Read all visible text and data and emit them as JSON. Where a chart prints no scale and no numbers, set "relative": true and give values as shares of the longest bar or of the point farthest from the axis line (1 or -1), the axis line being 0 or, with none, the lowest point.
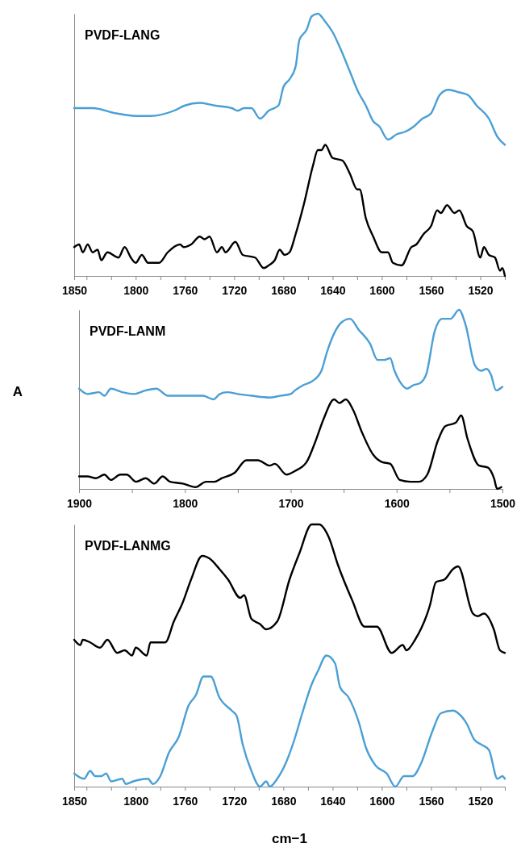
{
  "chart_data": [
    {
      "type": "line",
      "title": "PVDF-LANG",
      "relative": true,
      "xlim": [
        1850,
        1500
      ],
      "xticks": [
        1850,
        {
          "value": 1840,
          "label": null
        },
        {
          "value": 1820,
          "label": null
        },
        1800,
        {
          "value": 1780,
          "label": null
        },
        1760,
        {
          "value": 1740,
          "label": null
        },
        1720,
        {
          "value": 1700,
          "label": null
        },
        1680,
        {
          "value": 1660,
          "label": null
        },
        1640,
        {
          "value": 1620,
          "label": null
        },
        1600,
        {
          "value": 1580,
          "label": null
        },
        1560,
        {
          "value": 1540,
          "label": null
        },
        1520,
        {
          "value": 1500,
          "label": null
        }
      ],
      "series": [
        {
          "color": "#4a9fd5",
          "x": [
            1850,
            1835,
            1816,
            1800,
            1788,
            1769,
            1760,
            1748,
            1736,
            1722,
            1717,
            1712,
            1706,
            1699,
            1692,
            1684,
            1680,
            1675,
            1670,
            1667,
            1661,
            1657,
            1652,
            1646,
            1640,
            1633,
            1626,
            1619,
            1613,
            1607,
            1602,
            1595,
            1588,
            1581,
            1574,
            1567,
            1560,
            1553,
            1546,
            1537,
            1530,
            1523,
            1513,
            1506,
            1500
          ],
          "values": [
            0.64,
            0.64,
            0.62,
            0.61,
            0.61,
            0.63,
            0.65,
            0.66,
            0.65,
            0.64,
            0.63,
            0.64,
            0.64,
            0.6,
            0.63,
            0.65,
            0.72,
            0.75,
            0.8,
            0.9,
            0.94,
            0.99,
            1.0,
            0.97,
            0.93,
            0.86,
            0.78,
            0.7,
            0.65,
            0.59,
            0.57,
            0.52,
            0.54,
            0.55,
            0.57,
            0.6,
            0.62,
            0.69,
            0.71,
            0.7,
            0.69,
            0.65,
            0.6,
            0.53,
            0.5
          ]
        },
        {
          "color": "#000000",
          "x": [
            1850,
            1846,
            1843,
            1839,
            1835,
            1831,
            1828,
            1823,
            1814,
            1809,
            1804,
            1800,
            1795,
            1790,
            1781,
            1774,
            1764,
            1761,
            1755,
            1748,
            1744,
            1740,
            1734,
            1730,
            1727,
            1719,
            1713,
            1703,
            1696,
            1692,
            1687,
            1683,
            1679,
            1675,
            1670,
            1663,
            1656,
            1652,
            1649,
            1646,
            1640,
            1632,
            1626,
            1620,
            1618,
            1613,
            1607,
            1600,
            1595,
            1591,
            1584,
            1576,
            1572,
            1566,
            1560,
            1555,
            1552,
            1547,
            1541,
            1537,
            1531,
            1526,
            1520,
            1517,
            1513,
            1508,
            1504,
            1502,
            1500
          ],
          "values": [
            0.11,
            0.12,
            0.09,
            0.12,
            0.09,
            0.1,
            0.06,
            0.09,
            0.07,
            0.11,
            0.07,
            0.05,
            0.08,
            0.05,
            0.05,
            0.09,
            0.12,
            0.11,
            0.12,
            0.15,
            0.14,
            0.15,
            0.09,
            0.11,
            0.09,
            0.13,
            0.08,
            0.07,
            0.03,
            0.04,
            0.06,
            0.1,
            0.08,
            0.09,
            0.16,
            0.28,
            0.42,
            0.48,
            0.48,
            0.5,
            0.45,
            0.44,
            0.39,
            0.33,
            0.33,
            0.22,
            0.15,
            0.09,
            0.09,
            0.05,
            0.04,
            0.11,
            0.12,
            0.16,
            0.19,
            0.25,
            0.24,
            0.27,
            0.24,
            0.25,
            0.19,
            0.17,
            0.07,
            0.11,
            0.08,
            0.07,
            0.02,
            0.03,
            0.0
          ]
        }
      ]
    },
    {
      "type": "line",
      "title": "PVDF-LANM",
      "ylabel": "A",
      "relative": true,
      "xlim": [
        1900,
        1500
      ],
      "xticks": [
        1900,
        {
          "value": 1850,
          "label": null
        },
        1800,
        {
          "value": 1750,
          "label": null
        },
        1700,
        {
          "value": 1650,
          "label": null
        },
        1600,
        {
          "value": 1550,
          "label": null
        },
        1500
      ],
      "series": [
        {
          "color": "#4a9fd5",
          "x": [
            1900,
            1892,
            1881,
            1876,
            1870,
            1859,
            1848,
            1837,
            1827,
            1816,
            1805,
            1794,
            1783,
            1773,
            1767,
            1760,
            1750,
            1737,
            1720,
            1710,
            1700,
            1696,
            1688,
            1680,
            1671,
            1666,
            1658,
            1652,
            1644,
            1636,
            1625,
            1618,
            1612,
            1606,
            1602,
            1597,
            1590,
            1584,
            1578,
            1572,
            1564,
            1557,
            1549,
            1541,
            1535,
            1526,
            1520,
            1515,
            1511,
            1506,
            1500
          ],
          "values": [
            0.56,
            0.53,
            0.54,
            0.52,
            0.56,
            0.54,
            0.53,
            0.55,
            0.56,
            0.52,
            0.52,
            0.52,
            0.52,
            0.5,
            0.53,
            0.54,
            0.53,
            0.52,
            0.51,
            0.52,
            0.53,
            0.55,
            0.58,
            0.6,
            0.66,
            0.76,
            0.88,
            0.93,
            0.95,
            0.89,
            0.81,
            0.72,
            0.72,
            0.73,
            0.66,
            0.6,
            0.56,
            0.58,
            0.59,
            0.64,
            0.88,
            0.95,
            0.95,
            1.0,
            0.92,
            0.69,
            0.66,
            0.67,
            0.64,
            0.55,
            0.57
          ]
        },
        {
          "color": "#000000",
          "x": [
            1900,
            1892,
            1884,
            1876,
            1870,
            1861,
            1855,
            1846,
            1837,
            1829,
            1821,
            1814,
            1802,
            1790,
            1780,
            1772,
            1765,
            1753,
            1742,
            1731,
            1720,
            1715,
            1704,
            1696,
            1685,
            1677,
            1669,
            1659,
            1654,
            1648,
            1641,
            1633,
            1622,
            1614,
            1606,
            1597,
            1587,
            1579,
            1571,
            1561,
            1554,
            1544,
            1539,
            1533,
            1522,
            1514,
            1508,
            1505,
            1501
          ],
          "values": [
            0.07,
            0.07,
            0.06,
            0.08,
            0.05,
            0.08,
            0.08,
            0.04,
            0.06,
            0.03,
            0.07,
            0.04,
            0.03,
            0.01,
            0.04,
            0.04,
            0.06,
            0.09,
            0.16,
            0.16,
            0.13,
            0.14,
            0.08,
            0.1,
            0.15,
            0.26,
            0.39,
            0.5,
            0.48,
            0.5,
            0.44,
            0.32,
            0.19,
            0.15,
            0.14,
            0.05,
            0.04,
            0.04,
            0.08,
            0.27,
            0.35,
            0.37,
            0.41,
            0.28,
            0.13,
            0.12,
            0.06,
            0.0,
            0.01
          ]
        }
      ]
    },
    {
      "type": "line",
      "title": "PVDF-LANMG",
      "xlabel": "cm−1",
      "relative": true,
      "xlim": [
        1850,
        1500
      ],
      "xticks": [
        1850,
        {
          "value": 1840,
          "label": null
        },
        {
          "value": 1820,
          "label": null
        },
        1800,
        {
          "value": 1780,
          "label": null
        },
        1760,
        {
          "value": 1740,
          "label": null
        },
        1720,
        {
          "value": 1700,
          "label": null
        },
        1680,
        {
          "value": 1660,
          "label": null
        },
        1640,
        {
          "value": 1620,
          "label": null
        },
        1600,
        {
          "value": 1580,
          "label": null
        },
        1560,
        {
          "value": 1540,
          "label": null
        },
        1520,
        {
          "value": 1500,
          "label": null
        }
      ],
      "series": [
        {
          "color": "#000000",
          "x": [
            1850,
            1845,
            1843,
            1837,
            1829,
            1823,
            1815,
            1809,
            1803,
            1800,
            1791,
            1788,
            1776,
            1769,
            1762,
            1755,
            1746,
            1740,
            1732,
            1725,
            1715,
            1712,
            1706,
            1699,
            1694,
            1685,
            1675,
            1667,
            1657,
            1651,
            1643,
            1636,
            1624,
            1614,
            1604,
            1592,
            1583,
            1580,
            1573,
            1561,
            1556,
            1549,
            1542,
            1538,
            1526,
            1522,
            1517,
            1509,
            1504,
            1500
          ],
          "values": [
            0.56,
            0.54,
            0.56,
            0.55,
            0.53,
            0.56,
            0.51,
            0.52,
            0.5,
            0.53,
            0.5,
            0.55,
            0.55,
            0.63,
            0.7,
            0.79,
            0.88,
            0.87,
            0.83,
            0.79,
            0.72,
            0.73,
            0.64,
            0.62,
            0.6,
            0.63,
            0.79,
            0.89,
            1.0,
            1.0,
            0.95,
            0.85,
            0.71,
            0.61,
            0.61,
            0.51,
            0.54,
            0.52,
            0.56,
            0.69,
            0.78,
            0.79,
            0.83,
            0.84,
            0.66,
            0.65,
            0.66,
            0.6,
            0.52,
            0.51
          ]
        },
        {
          "color": "#4a9fd5",
          "x": [
            1850,
            1842,
            1837,
            1833,
            1828,
            1824,
            1820,
            1811,
            1808,
            1802,
            1790,
            1786,
            1780,
            1773,
            1765,
            1757,
            1751,
            1745,
            1739,
            1732,
            1722,
            1718,
            1713,
            1706,
            1699,
            1694,
            1691,
            1685,
            1678,
            1671,
            1664,
            1657,
            1652,
            1645,
            1638,
            1634,
            1627,
            1619,
            1613,
            1605,
            1596,
            1589,
            1582,
            1575,
            1568,
            1559,
            1552,
            1542,
            1538,
            1531,
            1525,
            1519,
            1513,
            1506,
            1502,
            1500
          ],
          "values": [
            0.05,
            0.03,
            0.06,
            0.04,
            0.04,
            0.05,
            0.02,
            0.03,
            0.01,
            0.02,
            0.03,
            0.01,
            0.04,
            0.13,
            0.19,
            0.31,
            0.35,
            0.42,
            0.42,
            0.34,
            0.29,
            0.27,
            0.16,
            0.06,
            0.0,
            0.02,
            0.0,
            0.03,
            0.09,
            0.18,
            0.29,
            0.39,
            0.44,
            0.5,
            0.47,
            0.38,
            0.34,
            0.25,
            0.15,
            0.08,
            0.05,
            0.0,
            0.04,
            0.04,
            0.09,
            0.21,
            0.28,
            0.29,
            0.28,
            0.24,
            0.18,
            0.16,
            0.14,
            0.03,
            0.04,
            0.03
          ]
        }
      ]
    }
  ]
}
